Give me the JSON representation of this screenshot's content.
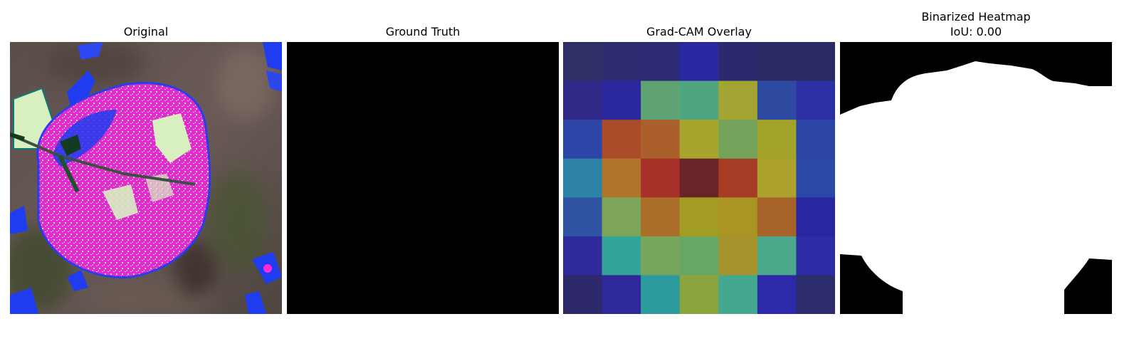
{
  "panels": [
    {
      "title": "Original"
    },
    {
      "title": "Ground Truth"
    },
    {
      "title": "Grad-CAM Overlay"
    },
    {
      "title": "Binarized Heatmap",
      "subtitle": "IoU: 0.00"
    }
  ],
  "colors": {
    "background": "#ffffff",
    "mask_black": "#000000",
    "mask_white": "#ffffff",
    "leaf_magenta": "#e22ad0",
    "leaf_pale_green": "#d8f0c0",
    "blotch_blue": "#1f3cf0"
  },
  "gradcam_grid": [
    [
      "#2f2e66",
      "#2e2b6e",
      "#2e2a74",
      "#2a28a0",
      "#2c2a6e",
      "#2b2a66",
      "#2b2a66"
    ],
    [
      "#2f2a88",
      "#2b279e",
      "#5ea371",
      "#4ea580",
      "#a2a532",
      "#2e4aa0",
      "#2b30a2"
    ],
    [
      "#2d45a6",
      "#aa4c2a",
      "#ab5f2a",
      "#a8a52e",
      "#73a35a",
      "#a3a22a",
      "#2b45a4"
    ],
    [
      "#2c83a4",
      "#b0752a",
      "#a63128",
      "#682428",
      "#a63c24",
      "#aea22e",
      "#2a48a6"
    ],
    [
      "#3153a4",
      "#7ca55a",
      "#aa6e2a",
      "#a39c24",
      "#a99424",
      "#a86428",
      "#2a26a0"
    ],
    [
      "#2e2a9c",
      "#33a49a",
      "#77a55a",
      "#68a666",
      "#a6932c",
      "#4ba88a",
      "#2b2ca6"
    ],
    [
      "#2e2a6a",
      "#2e289c",
      "#2b9a9c",
      "#8ca43e",
      "#44a891",
      "#2c2aa8",
      "#2d2c6c"
    ]
  ]
}
